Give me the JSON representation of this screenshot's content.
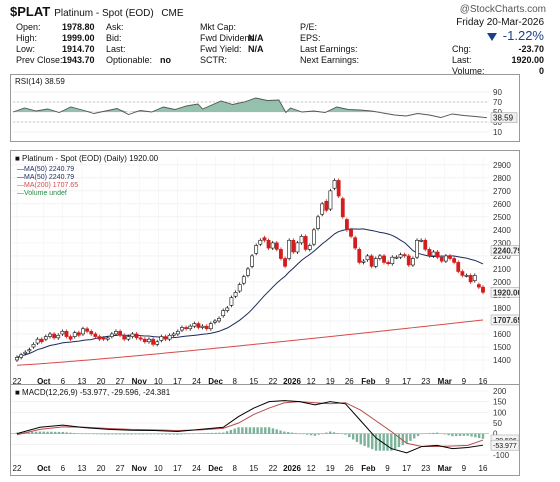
{
  "header": {
    "symbol": "$PLAT",
    "name": "Platinum - Spot (EOD)",
    "exchange": "CME",
    "watermark": "@StockCharts.com",
    "date": "Friday  20-Mar-2026",
    "pct_change": "-1.22%",
    "quote": [
      {
        "label": "Open:",
        "value": "1978.80"
      },
      {
        "label": "High:",
        "value": "1999.00"
      },
      {
        "label": "Low:",
        "value": "1914.70"
      },
      {
        "label": "Prev Close:",
        "value": "1943.70"
      }
    ],
    "col2": [
      {
        "label": "Ask:",
        "value": ""
      },
      {
        "label": "Bid:",
        "value": ""
      },
      {
        "label": "Last:",
        "value": ""
      },
      {
        "label": "Optionable:",
        "value": "no"
      }
    ],
    "col3": [
      {
        "label": "Mkt Cap:",
        "value": ""
      },
      {
        "label": "Fwd Dividend:",
        "value": "N/A"
      },
      {
        "label": "Fwd Yield:",
        "value": "N/A"
      },
      {
        "label": "SCTR:",
        "value": ""
      }
    ],
    "col4": [
      {
        "label": "P/E:",
        "value": ""
      },
      {
        "label": "EPS:",
        "value": ""
      },
      {
        "label": "Last Earnings:",
        "value": ""
      },
      {
        "label": "Next Earnings:",
        "value": ""
      }
    ],
    "col5": [
      {
        "label": "Chg:",
        "value": "-23.70"
      },
      {
        "label": "Last:",
        "value": "1920.00"
      },
      {
        "label": "Volume:",
        "value": "0"
      }
    ]
  },
  "colors": {
    "up": "#ffffff",
    "down": "#d21d1d",
    "ma50": "#1b2a5a",
    "ma200": "#d84a4a",
    "rsi": "#555555",
    "rsi_fill": "#7ab39a",
    "macd": "#000000",
    "signal": "#b84b4b",
    "hist": "#7ab39a",
    "price_label": "#333333"
  },
  "chart_data": [
    {
      "type": "line",
      "title": "RSI(14) 38.59",
      "yticks": [
        10,
        30,
        50,
        70,
        90
      ],
      "ylim": [
        0,
        100
      ],
      "last_label": "38.59",
      "x": [
        0,
        5,
        10,
        15,
        20,
        25,
        30,
        35,
        40,
        45,
        50,
        55,
        60,
        65,
        70,
        75,
        80,
        82,
        85,
        90,
        95,
        100,
        105,
        110,
        115,
        118,
        120,
        125,
        130,
        135,
        140,
        145,
        150,
        155,
        160,
        165,
        170,
        175,
        180,
        185,
        190,
        195,
        200,
        205
      ],
      "values": [
        50,
        58,
        52,
        56,
        49,
        60,
        54,
        47,
        52,
        57,
        45,
        53,
        50,
        60,
        55,
        62,
        66,
        56,
        62,
        72,
        65,
        70,
        78,
        73,
        74,
        49,
        58,
        50,
        52,
        49,
        60,
        55,
        54,
        52,
        48,
        44,
        42,
        47,
        44,
        39,
        46,
        43,
        41,
        38.59
      ]
    },
    {
      "type": "line",
      "title": "Platinum - Spot (EOD) (Daily) 1920.00",
      "legend": [
        "MA(50) 2240.79",
        "MA(50) 2240.79",
        "MA(200) 1707.65",
        "Volume undef"
      ],
      "ylim": [
        1300,
        2960
      ],
      "yticks": [
        1400,
        1500,
        1600,
        1700,
        1800,
        1900,
        2000,
        2100,
        2200,
        2300,
        2400,
        2500,
        2600,
        2700,
        2800,
        2900
      ],
      "price_labels": [
        {
          "value": 2240.79,
          "text": "2240.79"
        },
        {
          "value": 1920.0,
          "text": "1920.00"
        },
        {
          "value": 1707.65,
          "text": "1707.65"
        }
      ],
      "x_labels": [
        "22",
        "Oct",
        "6",
        "13",
        "20",
        "27",
        "Nov",
        "10",
        "17",
        "24",
        "Dec",
        "8",
        "15",
        "22",
        "2026",
        "12",
        "19",
        "26",
        "Feb",
        "9",
        "17",
        "23",
        "Mar",
        "9",
        "16"
      ],
      "x_label_pos": [
        0,
        7,
        12,
        17,
        22,
        27,
        32,
        37,
        42,
        47,
        52,
        57,
        62,
        67,
        72,
        77,
        82,
        87,
        92,
        97,
        102,
        107,
        112,
        117,
        122
      ],
      "close": [
        1420,
        1440,
        1460,
        1480,
        1520,
        1560,
        1540,
        1580,
        1600,
        1570,
        1590,
        1620,
        1580,
        1560,
        1610,
        1590,
        1640,
        1620,
        1600,
        1580,
        1560,
        1560,
        1570,
        1600,
        1620,
        1590,
        1560,
        1580,
        1600,
        1570,
        1560,
        1540,
        1560,
        1520,
        1540,
        1580,
        1560,
        1590,
        1600,
        1620,
        1650,
        1640,
        1660,
        1680,
        1650,
        1660,
        1640,
        1680,
        1700,
        1720,
        1780,
        1800,
        1880,
        1920,
        1980,
        2040,
        2100,
        2200,
        2280,
        2320,
        2320,
        2260,
        2300,
        2250,
        2180,
        2120,
        2320,
        2230,
        2300,
        2350,
        2250,
        2280,
        2400,
        2500,
        2600,
        2550,
        2700,
        2780,
        2660,
        2500,
        2400,
        2350,
        2260,
        2150,
        2160,
        2200,
        2120,
        2180,
        2200,
        2150,
        2140,
        2190,
        2190,
        2210,
        2200,
        2130,
        2180,
        2320,
        2320,
        2250,
        2200,
        2230,
        2190,
        2160,
        2200,
        2180,
        2150,
        2080,
        2050,
        2050,
        2000,
        2050,
        1960,
        1920
      ],
      "open": [
        1400,
        1420,
        1450,
        1470,
        1500,
        1530,
        1560,
        1560,
        1580,
        1600,
        1570,
        1600,
        1620,
        1580,
        1580,
        1610,
        1600,
        1640,
        1620,
        1600,
        1580,
        1570,
        1560,
        1580,
        1600,
        1620,
        1590,
        1560,
        1580,
        1600,
        1570,
        1560,
        1540,
        1560,
        1520,
        1550,
        1580,
        1560,
        1590,
        1600,
        1630,
        1650,
        1640,
        1660,
        1680,
        1650,
        1660,
        1640,
        1690,
        1700,
        1740,
        1780,
        1820,
        1890,
        1930,
        1990,
        2050,
        2120,
        2220,
        2290,
        2340,
        2320,
        2260,
        2300,
        2250,
        2180,
        2180,
        2320,
        2230,
        2300,
        2350,
        2250,
        2290,
        2410,
        2520,
        2620,
        2560,
        2720,
        2780,
        2640,
        2480,
        2400,
        2340,
        2250,
        2150,
        2170,
        2200,
        2120,
        2180,
        2200,
        2150,
        2140,
        2190,
        2190,
        2210,
        2200,
        2130,
        2190,
        2320,
        2320,
        2250,
        2200,
        2230,
        2190,
        2160,
        2200,
        2180,
        2150,
        2080,
        2050,
        2050,
        2010,
        1980,
        1960
      ]
    },
    {
      "type": "line",
      "title": "MACD(12,26,9) -53.977, -29.596, -24.381",
      "yticks": [
        -100,
        -50,
        0,
        50,
        100,
        150,
        200
      ],
      "ylim": [
        -100,
        200
      ],
      "last_labels": [
        "-29.596",
        "-53.977"
      ],
      "x": [
        0,
        6,
        12,
        18,
        24,
        30,
        36,
        42,
        48,
        54,
        58,
        62,
        66,
        70,
        74,
        78,
        82,
        86,
        90,
        94,
        98,
        102,
        106,
        110,
        114,
        118,
        122
      ],
      "macd": [
        0,
        30,
        40,
        28,
        20,
        16,
        15,
        10,
        20,
        30,
        80,
        120,
        150,
        155,
        150,
        135,
        150,
        140,
        60,
        -20,
        -70,
        -90,
        -60,
        -55,
        -70,
        -65,
        -54
      ],
      "signal": [
        -5,
        20,
        32,
        30,
        24,
        20,
        18,
        15,
        18,
        25,
        50,
        90,
        120,
        145,
        150,
        145,
        140,
        145,
        110,
        60,
        10,
        -45,
        -60,
        -60,
        -58,
        -55,
        -30
      ],
      "hist": [
        5,
        10,
        8,
        -2,
        -4,
        -4,
        -3,
        -5,
        2,
        5,
        30,
        30,
        30,
        10,
        0,
        -10,
        10,
        -5,
        -50,
        -80,
        -80,
        -45,
        0,
        5,
        -12,
        -10,
        -24
      ]
    }
  ]
}
